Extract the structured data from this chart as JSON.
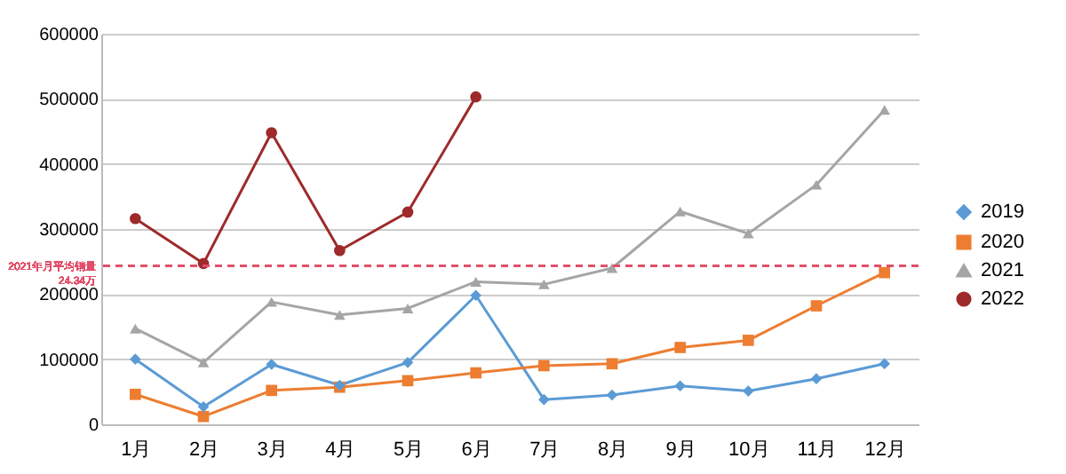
{
  "chart_data": {
    "type": "line",
    "categories": [
      "1月",
      "2月",
      "3月",
      "4月",
      "5月",
      "6月",
      "7月",
      "8月",
      "9月",
      "10月",
      "11月",
      "12月"
    ],
    "series": [
      {
        "name": "2019",
        "color": "#5b9bd5",
        "marker": "diamond",
        "values": [
          100000,
          27000,
          92000,
          60000,
          95000,
          198000,
          38000,
          45000,
          59000,
          51000,
          70000,
          93000
        ]
      },
      {
        "name": "2020",
        "color": "#ed7d31",
        "marker": "square",
        "values": [
          46000,
          12000,
          52000,
          57000,
          67000,
          79000,
          90000,
          93000,
          118000,
          129000,
          182000,
          233000
        ]
      },
      {
        "name": "2021",
        "color": "#a5a5a5",
        "marker": "triangle",
        "values": [
          147000,
          95000,
          188000,
          168000,
          178000,
          219000,
          215000,
          240000,
          327000,
          293000,
          368000,
          483000
        ]
      },
      {
        "name": "2022",
        "color": "#9e2a2b",
        "marker": "circle",
        "values": [
          316000,
          247000,
          448000,
          267000,
          326000,
          503000,
          null,
          null,
          null,
          null,
          null,
          null
        ]
      }
    ],
    "ylim": [
      0,
      600000
    ],
    "yticks": [
      0,
      100000,
      200000,
      300000,
      400000,
      500000,
      600000
    ],
    "grid": "y",
    "legend": "right",
    "ref_lines": [
      {
        "axis": "y",
        "value": 243400,
        "label": "2021年月平均销量 24.34万",
        "color": "#e0506a",
        "line_style": "dashed"
      }
    ]
  }
}
